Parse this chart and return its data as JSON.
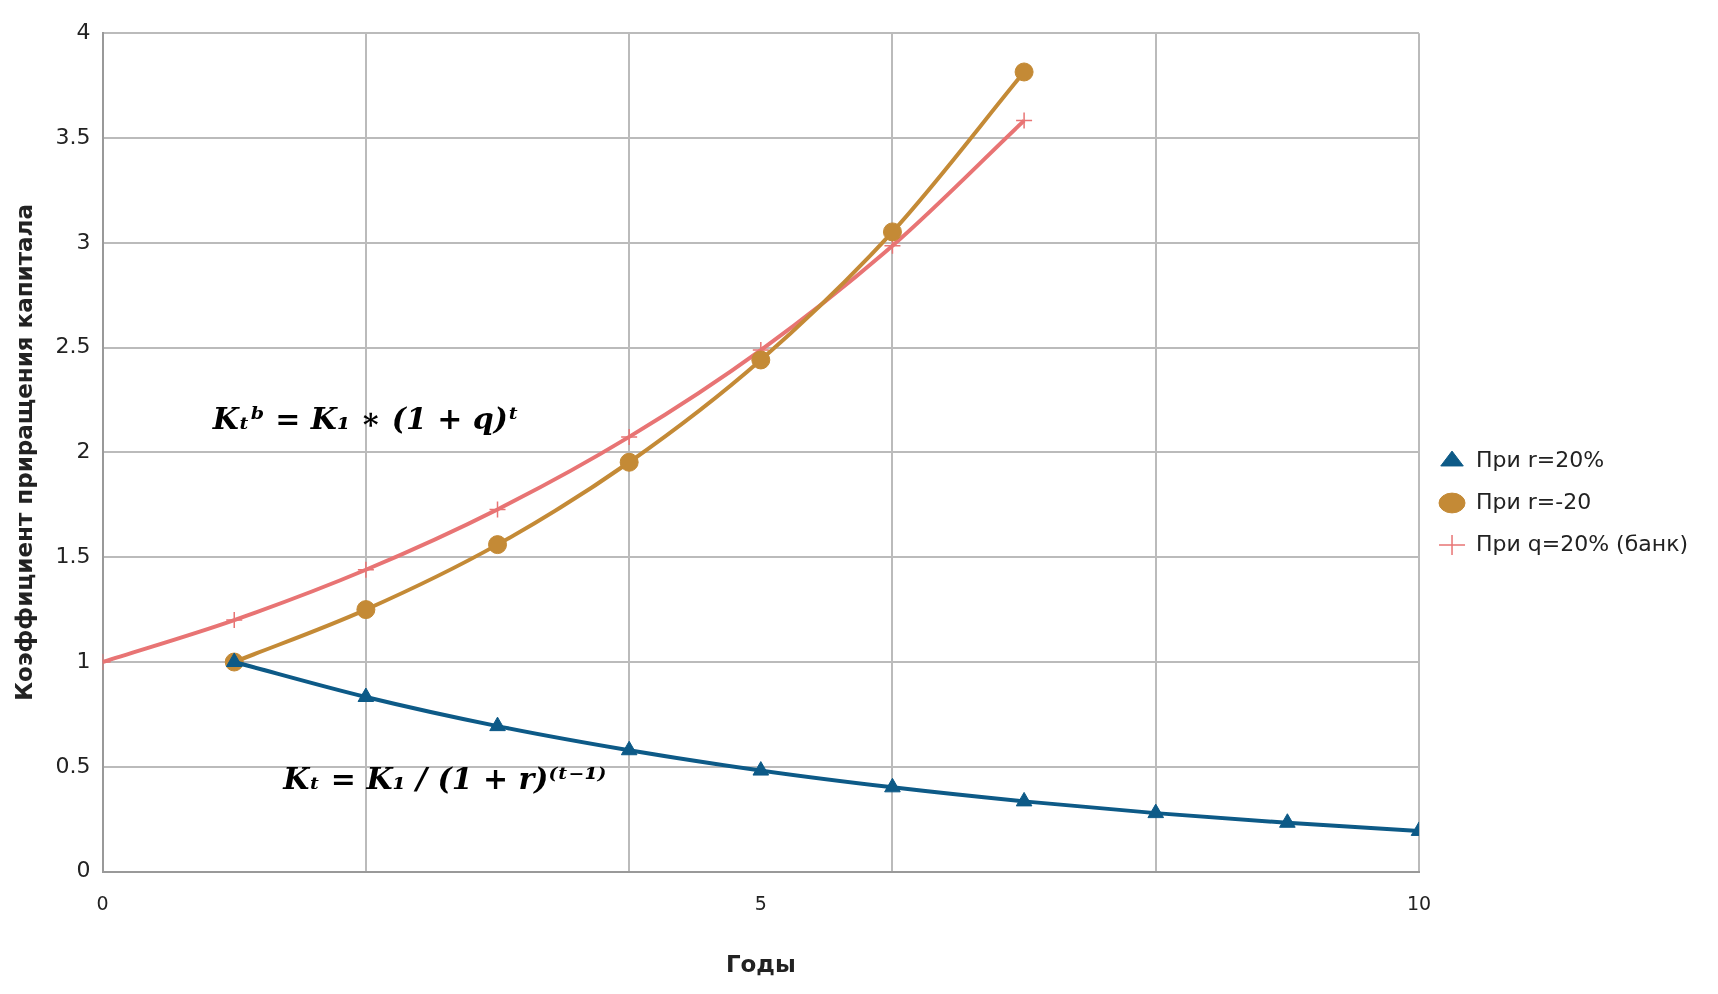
{
  "chart_data": {
    "type": "line",
    "xlabel": "Годы",
    "ylabel": "Коэффициент приращения капитала",
    "xlim": [
      0,
      10
    ],
    "xticks": [
      0,
      {
        "value": 2,
        "label": null
      },
      {
        "value": 4,
        "label": null
      },
      5,
      {
        "value": 6,
        "label": null
      },
      {
        "value": 8,
        "label": null
      },
      10
    ],
    "ylim": [
      0,
      4
    ],
    "yticks": [
      0,
      0.5,
      1,
      1.5,
      2,
      2.5,
      3,
      3.5,
      4
    ],
    "grid": true,
    "legend": "right",
    "annotations": [
      "Kₜᵇ = K₁ ∗ (1 + q)ᵗ",
      "Kₜ = K₁ / (1 + r)⁽ᵗ⁻¹⁾"
    ],
    "series": [
      {
        "name": "При r=20%",
        "color": "#0d5a87",
        "marker": "triangle",
        "x": [
          1,
          2,
          3,
          4,
          5,
          6,
          7,
          8,
          9,
          10
        ],
        "values": [
          1,
          0.833,
          0.694,
          0.579,
          0.482,
          0.402,
          0.335,
          0.279,
          0.233,
          0.194
        ]
      },
      {
        "name": "При r=-20",
        "color": "#c48a36",
        "marker": "circle",
        "x": [
          1,
          2,
          3,
          4,
          5,
          6,
          7
        ],
        "values": [
          1,
          1.25,
          1.56,
          1.953,
          2.441,
          3.052,
          3.815
        ]
      },
      {
        "name": "При q=20% (банк)",
        "color": "#e87474",
        "marker": "cross",
        "x": [
          0,
          1,
          2,
          3,
          4,
          5,
          6,
          7
        ],
        "values": [
          1,
          1.2,
          1.44,
          1.728,
          2.074,
          2.488,
          2.986,
          3.583
        ]
      }
    ]
  }
}
